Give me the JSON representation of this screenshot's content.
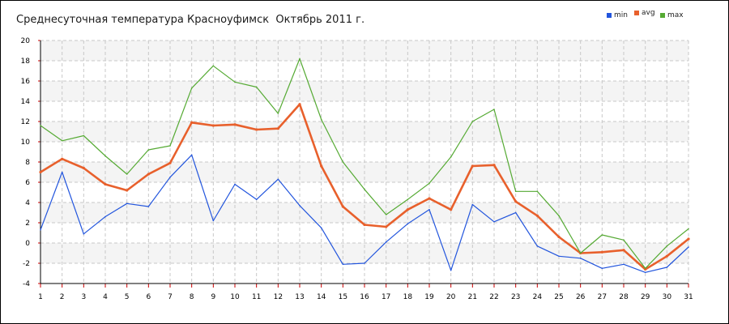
{
  "title": "Среднесуточная температура Красноуфимск  Октябрь 2011 г.",
  "legend": [
    {
      "name": "min",
      "color": "#2255dd"
    },
    {
      "name": "avg",
      "color": "#e8602c"
    },
    {
      "name": "max",
      "color": "#55aa33"
    }
  ],
  "chart_data": {
    "type": "line",
    "title": "Среднесуточная температура Красноуфимск  Октябрь 2011 г.",
    "xlabel": "",
    "ylabel": "",
    "x": [
      1,
      2,
      3,
      4,
      5,
      6,
      7,
      8,
      9,
      10,
      11,
      12,
      13,
      14,
      15,
      16,
      17,
      18,
      19,
      20,
      21,
      22,
      23,
      24,
      25,
      26,
      27,
      28,
      29,
      30,
      31
    ],
    "xlim": [
      1,
      31
    ],
    "ylim": [
      -4,
      20
    ],
    "yticks": [
      -4,
      -2,
      0,
      2,
      4,
      6,
      8,
      10,
      12,
      14,
      16,
      18,
      20
    ],
    "grid": true,
    "legend_position": "top-right",
    "series": [
      {
        "name": "min",
        "color": "#2255dd",
        "values": [
          1.3,
          7.0,
          0.9,
          2.6,
          3.9,
          3.6,
          6.5,
          8.7,
          2.2,
          5.8,
          4.3,
          6.3,
          3.7,
          1.5,
          -2.1,
          -2.0,
          0.1,
          1.9,
          3.3,
          -2.7,
          3.8,
          2.1,
          3.0,
          -0.3,
          -1.3,
          -1.5,
          -2.5,
          -2.1,
          -2.9,
          -2.4,
          -0.4
        ]
      },
      {
        "name": "avg",
        "color": "#e8602c",
        "values": [
          7.0,
          8.3,
          7.4,
          5.8,
          5.2,
          6.8,
          7.9,
          11.9,
          11.6,
          11.7,
          11.2,
          11.3,
          13.7,
          7.6,
          3.6,
          1.8,
          1.6,
          3.3,
          4.4,
          3.3,
          7.6,
          7.7,
          4.1,
          2.7,
          0.6,
          -1.0,
          -0.9,
          -0.7,
          -2.6,
          -1.3,
          0.4
        ]
      },
      {
        "name": "max",
        "color": "#55aa33",
        "values": [
          11.6,
          10.1,
          10.6,
          8.6,
          6.8,
          9.2,
          9.6,
          15.3,
          17.5,
          15.9,
          15.4,
          12.8,
          18.2,
          12.2,
          8.0,
          5.3,
          2.8,
          4.3,
          5.9,
          8.5,
          12.0,
          13.2,
          5.1,
          5.1,
          2.7,
          -1.0,
          0.8,
          0.3,
          -2.5,
          -0.3,
          1.4
        ]
      }
    ]
  }
}
